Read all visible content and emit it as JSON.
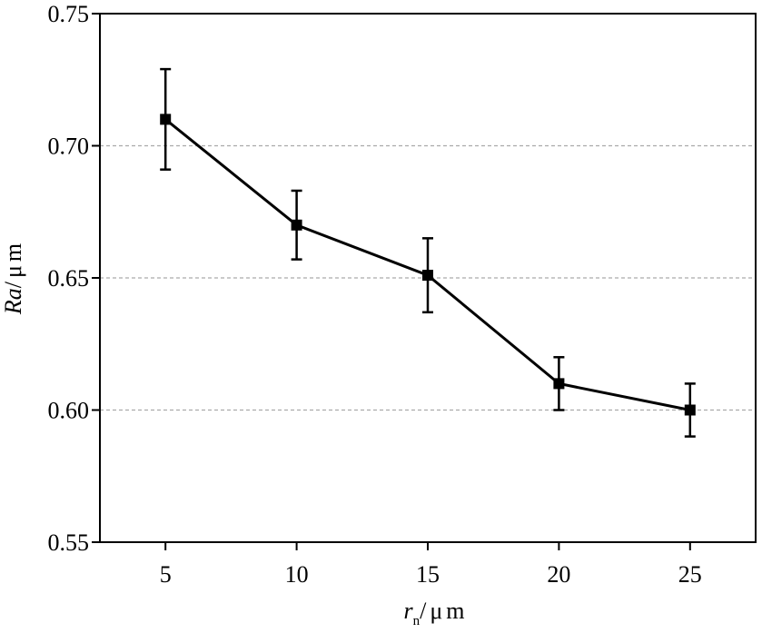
{
  "chart_data": {
    "type": "line",
    "title": "",
    "x": [
      5,
      10,
      15,
      20,
      25
    ],
    "xticks": [
      "5",
      "10",
      "15",
      "20",
      "25"
    ],
    "xlim": [
      2.5,
      27.5
    ],
    "ylim": [
      0.55,
      0.75
    ],
    "yticks": [
      "0.55",
      "0.60",
      "0.65",
      "0.70",
      "0.75"
    ],
    "xlabel": {
      "main": "r",
      "sub": "n",
      "unit": "/μm"
    },
    "ylabel": {
      "main": "Ra",
      "unit": "/μm"
    },
    "grid": {
      "y_lines_at": [
        0.6,
        0.65,
        0.7
      ],
      "style": "dashed"
    },
    "series": [
      {
        "values": [
          0.71,
          0.67,
          0.651,
          0.61,
          0.6
        ],
        "errors": [
          0.019,
          0.013,
          0.014,
          0.01,
          0.01
        ],
        "marker": "square",
        "color": "#000000"
      }
    ]
  }
}
